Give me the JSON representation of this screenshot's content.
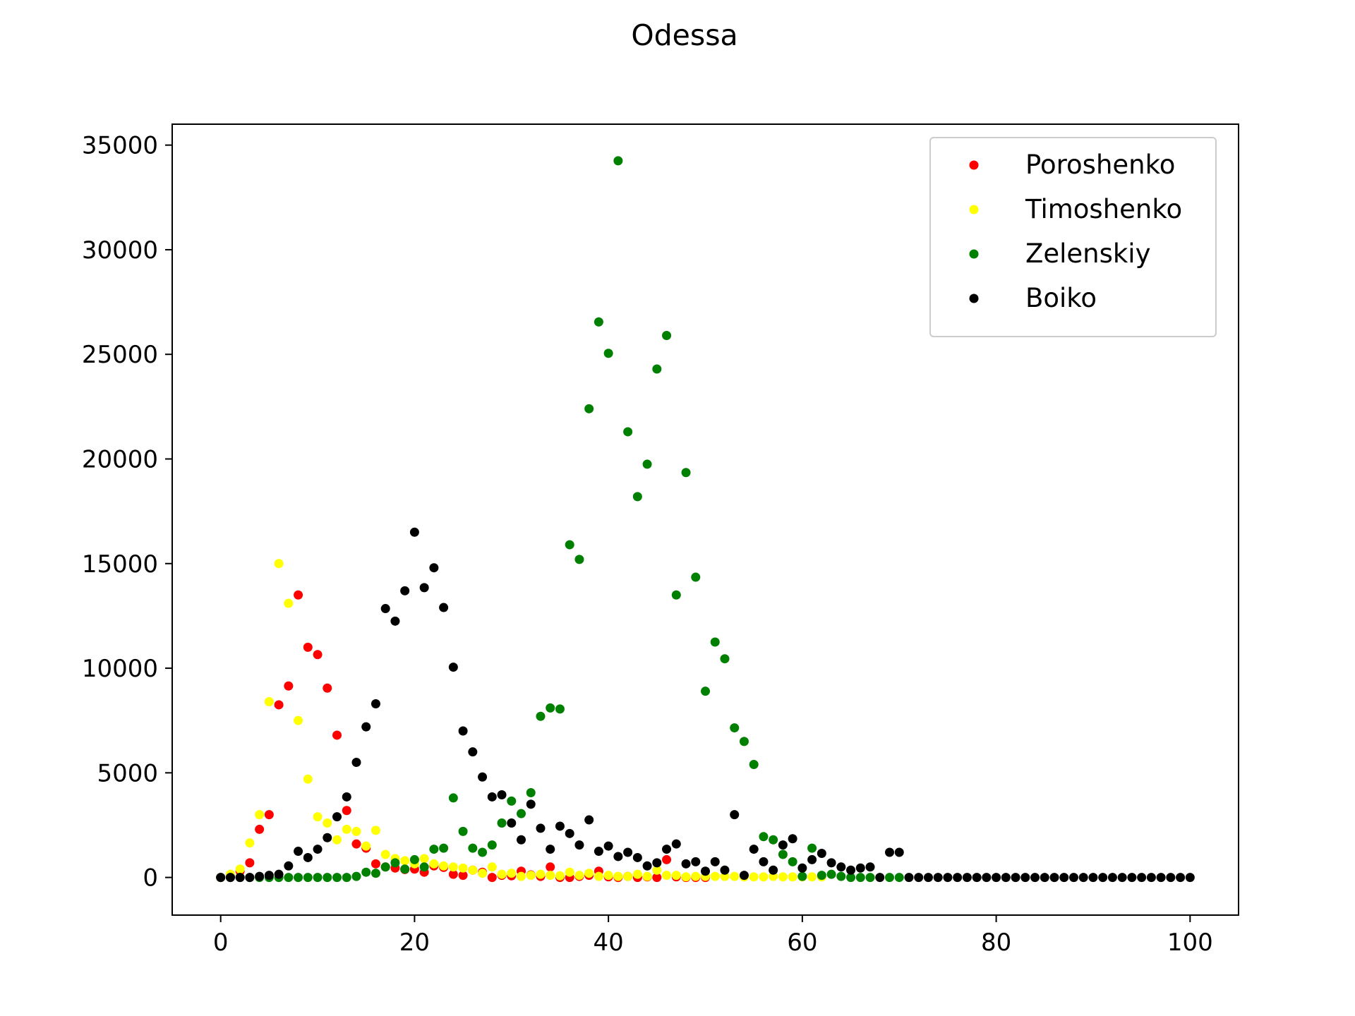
{
  "chart_data": {
    "type": "scatter",
    "title": "Odessa",
    "xlabel": "",
    "ylabel": "",
    "xlim": [
      -5,
      105
    ],
    "ylim": [
      -1800,
      36000
    ],
    "xticks": [
      0,
      20,
      40,
      60,
      80,
      100
    ],
    "yticks": [
      0,
      5000,
      10000,
      15000,
      20000,
      25000,
      30000,
      35000
    ],
    "grid": false,
    "legend_position": "top-right",
    "series": [
      {
        "name": "Poroshenko",
        "color": "#ff0000",
        "x": [
          0,
          1,
          2,
          3,
          4,
          5,
          6,
          7,
          8,
          9,
          10,
          11,
          12,
          13,
          14,
          15,
          16,
          17,
          18,
          19,
          20,
          21,
          22,
          23,
          24,
          25,
          26,
          27,
          28,
          29,
          30,
          31,
          32,
          33,
          34,
          35,
          36,
          37,
          38,
          39,
          40,
          41,
          42,
          43,
          44,
          45,
          46,
          47,
          48,
          49,
          50
        ],
        "y": [
          0,
          80,
          300,
          700,
          2300,
          3000,
          8250,
          9150,
          13500,
          11000,
          10650,
          9050,
          6800,
          3200,
          1600,
          1400,
          650,
          500,
          450,
          380,
          400,
          250,
          550,
          480,
          150,
          100,
          350,
          250,
          0,
          100,
          80,
          300,
          120,
          50,
          500,
          0,
          0,
          50,
          100,
          300,
          30,
          0,
          50,
          0,
          30,
          0,
          850,
          30,
          0,
          0,
          0
        ]
      },
      {
        "name": "Timoshenko",
        "color": "#ffff00",
        "x": [
          0,
          1,
          2,
          3,
          4,
          5,
          6,
          7,
          8,
          9,
          10,
          11,
          12,
          13,
          14,
          15,
          16,
          17,
          18,
          19,
          20,
          21,
          22,
          23,
          24,
          25,
          26,
          27,
          28,
          29,
          30,
          31,
          32,
          33,
          34,
          35,
          36,
          37,
          38,
          39,
          40,
          41,
          42,
          43,
          44,
          45,
          46,
          47,
          48,
          49,
          50,
          51,
          52,
          53,
          54,
          55,
          56,
          57,
          58,
          59,
          60,
          61,
          62
        ],
        "y": [
          0,
          150,
          400,
          1650,
          3000,
          8400,
          15000,
          13100,
          7500,
          4700,
          2900,
          2600,
          1800,
          2300,
          2200,
          1500,
          2250,
          1100,
          900,
          800,
          650,
          900,
          650,
          550,
          500,
          450,
          350,
          200,
          500,
          150,
          200,
          50,
          100,
          150,
          100,
          80,
          250,
          100,
          200,
          50,
          100,
          50,
          50,
          150,
          50,
          350,
          100,
          100,
          30,
          50,
          50,
          50,
          50,
          50,
          30,
          30,
          30,
          50,
          30,
          30,
          30,
          30,
          30
        ]
      },
      {
        "name": "Zelenskiy",
        "color": "#008000",
        "x": [
          0,
          1,
          2,
          3,
          4,
          5,
          6,
          7,
          8,
          9,
          10,
          11,
          12,
          13,
          14,
          15,
          16,
          17,
          18,
          19,
          20,
          21,
          22,
          23,
          24,
          25,
          26,
          27,
          28,
          29,
          30,
          31,
          32,
          33,
          34,
          35,
          36,
          37,
          38,
          39,
          40,
          41,
          42,
          43,
          44,
          45,
          46,
          47,
          48,
          49,
          50,
          51,
          52,
          53,
          54,
          55,
          56,
          57,
          58,
          59,
          60,
          61,
          62,
          63,
          64,
          65,
          66,
          67,
          69,
          70
        ],
        "y": [
          0,
          0,
          0,
          0,
          0,
          0,
          0,
          0,
          0,
          0,
          0,
          0,
          0,
          0,
          50,
          250,
          200,
          500,
          700,
          400,
          850,
          500,
          1350,
          1400,
          3800,
          2200,
          1400,
          1200,
          1550,
          2600,
          3650,
          3050,
          4050,
          7700,
          8100,
          8050,
          15900,
          15200,
          22400,
          26550,
          25050,
          34250,
          21300,
          18200,
          19750,
          24300,
          25900,
          13500,
          19350,
          14350,
          8900,
          11250,
          10450,
          7150,
          6500,
          5400,
          1950,
          1800,
          1100,
          750,
          50,
          1400,
          100,
          150,
          50,
          0,
          0,
          0,
          0,
          0
        ]
      },
      {
        "name": "Boiko",
        "color": "#000000",
        "x": [
          0,
          1,
          2,
          3,
          4,
          5,
          6,
          7,
          8,
          9,
          10,
          11,
          12,
          13,
          14,
          15,
          16,
          17,
          18,
          19,
          20,
          21,
          22,
          23,
          24,
          25,
          26,
          27,
          28,
          29,
          30,
          31,
          32,
          33,
          34,
          35,
          36,
          37,
          38,
          39,
          40,
          41,
          42,
          43,
          44,
          45,
          46,
          47,
          48,
          49,
          50,
          51,
          52,
          53,
          54,
          55,
          56,
          57,
          58,
          59,
          60,
          61,
          62,
          63,
          64,
          65,
          66,
          67,
          68,
          69,
          70,
          71,
          72,
          73,
          74,
          75,
          76,
          77,
          78,
          79,
          80,
          81,
          82,
          83,
          84,
          85,
          86,
          87,
          88,
          89,
          90,
          91,
          92,
          93,
          94,
          95,
          96,
          97,
          98,
          99,
          100
        ],
        "y": [
          0,
          0,
          0,
          0,
          50,
          100,
          150,
          550,
          1250,
          950,
          1350,
          1900,
          2900,
          3850,
          5500,
          7200,
          8300,
          12850,
          12250,
          13700,
          16500,
          13850,
          14800,
          12900,
          10050,
          7000,
          6000,
          4800,
          3850,
          3950,
          2600,
          1800,
          3500,
          2350,
          1350,
          2450,
          2100,
          1550,
          2750,
          1250,
          1500,
          1000,
          1200,
          950,
          550,
          700,
          1350,
          1600,
          650,
          750,
          300,
          750,
          350,
          3000,
          100,
          1350,
          750,
          350,
          1550,
          1850,
          450,
          850,
          1150,
          700,
          500,
          350,
          450,
          500,
          0,
          1200,
          1200,
          0,
          0,
          0,
          0,
          0,
          0,
          0,
          0,
          0,
          0,
          0,
          0,
          0,
          0,
          0,
          0,
          0,
          0,
          0,
          0,
          0,
          0,
          0,
          0,
          0,
          0,
          0,
          0,
          0,
          0
        ]
      }
    ]
  }
}
